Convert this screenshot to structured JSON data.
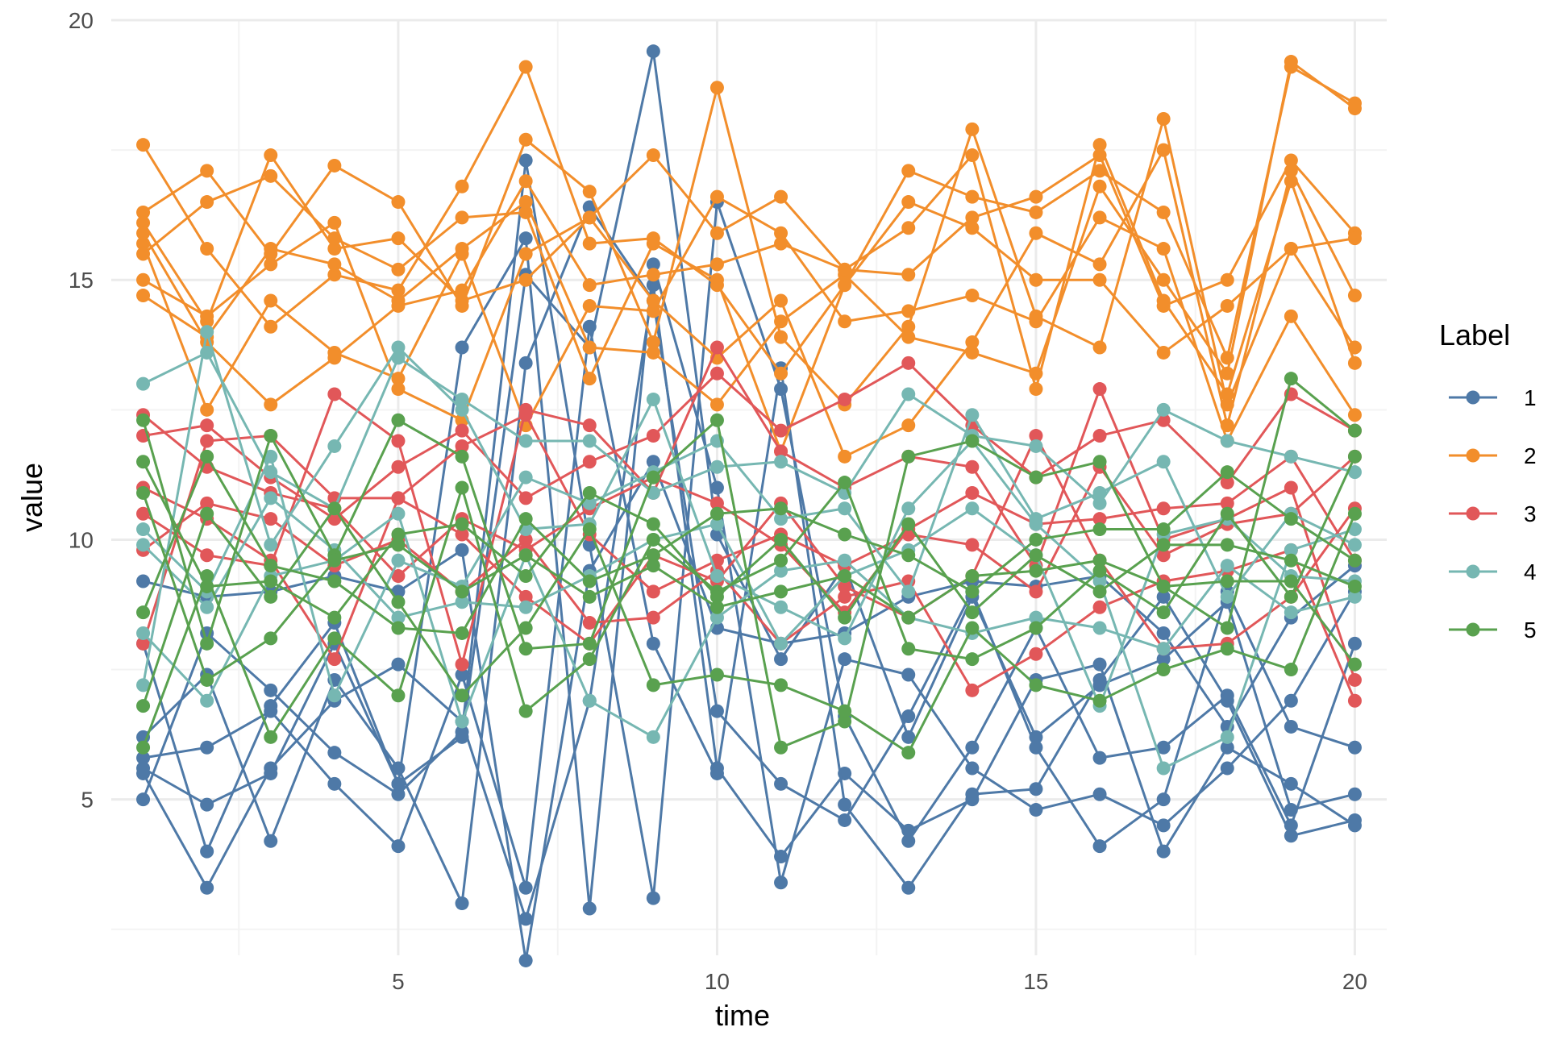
{
  "chart_data": {
    "type": "line",
    "title": "",
    "xlabel": "time",
    "ylabel": "value",
    "xlim": [
      0.5,
      20.5
    ],
    "ylim": [
      2.0,
      20.0
    ],
    "x_ticks": [
      5,
      10,
      15,
      20
    ],
    "x_tick_labels": [
      "5",
      "10",
      "15",
      "20"
    ],
    "y_ticks": [
      5,
      10,
      15,
      20
    ],
    "y_tick_labels": [
      "5",
      "10",
      "15",
      "20"
    ],
    "x_minor": [
      2.5,
      7.5,
      12.5,
      17.5
    ],
    "y_minor": [
      2.5,
      7.5,
      12.5,
      17.5
    ],
    "grid": true,
    "legend": {
      "title": "Label",
      "position": "right"
    },
    "x": [
      1,
      2,
      3,
      4,
      5,
      6,
      7,
      8,
      9,
      10,
      11,
      12,
      13,
      14,
      15,
      16,
      17,
      18,
      19,
      20
    ],
    "groups": [
      {
        "label": "1",
        "color": "#4e79a7",
        "series": [
          [
            5.0,
            8.2,
            7.1,
            5.9,
            5.1,
            6.3,
            17.3,
            9.9,
            3.1,
            16.5,
            12.9,
            6.6,
            4.2,
            6.0,
            8.3,
            5.8,
            6.0,
            7.0,
            4.5,
            8.0
          ],
          [
            5.5,
            3.3,
            5.6,
            6.9,
            7.6,
            6.5,
            2.7,
            6.9,
            14.9,
            5.6,
            3.9,
            5.5,
            4.4,
            5.0,
            7.3,
            7.6,
            4.0,
            6.0,
            5.3,
            4.5
          ],
          [
            6.2,
            7.4,
            4.2,
            7.3,
            5.6,
            3.0,
            13.4,
            16.4,
            14.6,
            6.7,
            5.3,
            4.6,
            6.6,
            9.0,
            6.0,
            4.1,
            5.0,
            9.0,
            6.4,
            6.0
          ],
          [
            5.8,
            6.0,
            6.7,
            5.3,
            4.1,
            7.4,
            3.3,
            14.1,
            8.0,
            5.5,
            13.3,
            4.9,
            3.3,
            5.1,
            5.2,
            7.3,
            8.9,
            6.9,
            4.3,
            4.6
          ],
          [
            5.6,
            4.9,
            5.5,
            8.0,
            5.3,
            13.7,
            15.8,
            2.9,
            15.3,
            11.0,
            3.4,
            7.7,
            7.4,
            5.6,
            4.8,
            5.1,
            4.5,
            5.6,
            6.9,
            9.0
          ],
          [
            8.0,
            4.0,
            6.8,
            8.4,
            5.3,
            6.2,
            15.1,
            13.7,
            19.4,
            10.1,
            7.7,
            9.5,
            6.2,
            8.9,
            6.2,
            7.2,
            7.7,
            8.8,
            4.8,
            5.1
          ],
          [
            9.2,
            8.9,
            9.0,
            9.3,
            9.0,
            9.8,
            1.9,
            9.4,
            11.5,
            8.3,
            8.0,
            8.2,
            8.9,
            9.2,
            9.1,
            9.3,
            8.2,
            6.4,
            8.5,
            9.5
          ]
        ]
      },
      {
        "label": "2",
        "color": "#f28e2b",
        "series": [
          [
            17.6,
            15.6,
            14.1,
            15.1,
            14.8,
            16.8,
            19.1,
            15.7,
            15.8,
            14.9,
            13.2,
            14.9,
            17.1,
            16.6,
            16.3,
            17.1,
            16.3,
            13.5,
            19.1,
            18.4
          ],
          [
            16.3,
            17.1,
            15.5,
            17.2,
            16.5,
            14.5,
            17.7,
            16.7,
            13.8,
            18.7,
            13.9,
            12.6,
            14.1,
            17.9,
            14.3,
            13.7,
            18.1,
            12.6,
            15.6,
            13.7
          ],
          [
            16.1,
            14.2,
            17.4,
            15.6,
            15.8,
            14.6,
            15.0,
            16.2,
            17.4,
            15.9,
            16.6,
            15.2,
            15.1,
            16.2,
            16.6,
            17.4,
            14.5,
            15.0,
            17.3,
            15.9
          ],
          [
            15.7,
            12.5,
            14.6,
            13.6,
            13.1,
            15.5,
            12.2,
            14.5,
            14.4,
            16.6,
            15.9,
            14.2,
            14.4,
            14.7,
            14.2,
            16.2,
            15.6,
            11.9,
            14.3,
            12.4
          ],
          [
            15.5,
            16.5,
            17.0,
            15.8,
            15.2,
            16.2,
            16.3,
            13.1,
            15.7,
            15.0,
            11.7,
            14.9,
            16.5,
            16.0,
            15.0,
            15.0,
            13.6,
            14.5,
            15.6,
            15.8
          ],
          [
            15.0,
            14.3,
            15.3,
            16.1,
            12.9,
            12.3,
            15.5,
            16.2,
            14.6,
            13.5,
            14.6,
            11.6,
            12.2,
            13.8,
            15.9,
            15.3,
            17.5,
            12.2,
            17.1,
            14.7
          ],
          [
            14.7,
            13.9,
            15.6,
            15.3,
            14.6,
            15.6,
            16.5,
            13.7,
            13.6,
            12.6,
            14.2,
            15.1,
            13.9,
            13.6,
            13.2,
            16.8,
            15.0,
            13.2,
            19.2,
            18.3
          ],
          [
            15.9,
            13.8,
            12.6,
            13.5,
            14.5,
            14.8,
            16.9,
            14.9,
            15.1,
            15.3,
            15.7,
            15.2,
            16.0,
            17.4,
            12.9,
            17.6,
            14.6,
            12.8,
            16.9,
            13.4
          ]
        ]
      },
      {
        "label": "3",
        "color": "#e15759",
        "series": [
          [
            12.0,
            12.2,
            11.2,
            10.4,
            11.4,
            12.1,
            10.8,
            11.5,
            12.0,
            13.2,
            12.1,
            12.7,
            13.4,
            12.2,
            11.2,
            12.0,
            12.3,
            11.1,
            12.8,
            12.1
          ],
          [
            10.5,
            9.7,
            9.5,
            12.8,
            11.9,
            7.6,
            12.5,
            12.2,
            10.9,
            13.7,
            11.7,
            11.0,
            11.6,
            11.4,
            9.5,
            12.9,
            10.0,
            10.4,
            11.0,
            7.3
          ],
          [
            9.8,
            10.7,
            10.4,
            9.5,
            10.0,
            9.0,
            10.0,
            8.4,
            8.5,
            9.4,
            8.0,
            8.9,
            9.2,
            7.1,
            7.8,
            8.7,
            9.2,
            9.4,
            9.8,
            6.9
          ],
          [
            8.0,
            11.9,
            12.0,
            10.8,
            10.8,
            11.8,
            12.4,
            10.1,
            9.0,
            9.6,
            10.1,
            9.5,
            10.1,
            9.9,
            9.0,
            11.4,
            9.7,
            10.3,
            10.5,
            11.6
          ],
          [
            11.0,
            10.4,
            9.6,
            7.7,
            10.8,
            10.1,
            8.9,
            8.0,
            9.7,
            9.2,
            10.7,
            9.1,
            8.5,
            9.3,
            12.0,
            9.6,
            7.9,
            8.0,
            8.9,
            10.6
          ],
          [
            12.4,
            11.4,
            10.9,
            10.6,
            9.3,
            10.4,
            9.8,
            10.6,
            11.2,
            10.7,
            9.9,
            8.6,
            10.2,
            10.9,
            10.3,
            10.4,
            10.6,
            10.7,
            11.6,
            9.6
          ]
        ]
      },
      {
        "label": "4",
        "color": "#76b7b2",
        "series": [
          [
            13.0,
            13.6,
            11.3,
            10.6,
            13.5,
            12.7,
            11.9,
            11.9,
            10.9,
            11.4,
            11.5,
            10.9,
            12.8,
            12.0,
            11.8,
            10.7,
            12.5,
            11.9,
            11.6,
            11.3
          ],
          [
            7.2,
            14.0,
            9.9,
            11.8,
            13.7,
            12.5,
            10.2,
            10.3,
            12.7,
            9.3,
            8.7,
            8.1,
            10.6,
            11.9,
            10.3,
            9.2,
            5.6,
            6.2,
            9.8,
            10.2
          ],
          [
            8.2,
            6.9,
            9.3,
            9.6,
            10.5,
            6.5,
            9.7,
            6.9,
            6.2,
            8.5,
            9.4,
            9.6,
            8.5,
            8.2,
            8.5,
            8.3,
            7.9,
            9.5,
            8.6,
            8.9
          ],
          [
            10.2,
            9.0,
            11.6,
            7.0,
            9.6,
            9.1,
            11.2,
            10.7,
            11.3,
            11.9,
            10.4,
            10.6,
            9.0,
            12.4,
            10.4,
            10.9,
            11.5,
            8.9,
            10.5,
            9.9
          ],
          [
            9.9,
            8.7,
            10.8,
            9.8,
            8.5,
            8.8,
            8.7,
            9.3,
            10.0,
            10.3,
            8.0,
            9.3,
            9.8,
            10.6,
            9.7,
            6.8,
            10.1,
            10.4,
            9.3,
            9.2
          ]
        ]
      },
      {
        "label": "5",
        "color": "#59a14f",
        "series": [
          [
            12.3,
            8.0,
            12.0,
            9.7,
            12.3,
            11.6,
            7.9,
            8.0,
            11.2,
            12.3,
            6.0,
            6.5,
            11.6,
            11.9,
            11.2,
            11.5,
            9.1,
            8.3,
            13.1,
            12.1
          ],
          [
            6.0,
            9.3,
            6.2,
            8.1,
            7.0,
            11.0,
            6.7,
            7.7,
            10.0,
            9.0,
            9.6,
            11.1,
            7.9,
            7.7,
            8.3,
            9.4,
            8.6,
            10.5,
            8.9,
            11.6
          ],
          [
            6.8,
            10.5,
            8.9,
            10.6,
            8.8,
            7.0,
            8.3,
            10.2,
            7.2,
            7.4,
            7.2,
            6.7,
            5.9,
            8.3,
            7.2,
            6.9,
            7.5,
            7.9,
            7.5,
            10.5
          ],
          [
            8.6,
            11.6,
            9.5,
            9.2,
            8.3,
            8.2,
            10.4,
            9.2,
            9.7,
            10.5,
            10.6,
            10.1,
            9.7,
            9.0,
            10.0,
            10.2,
            10.2,
            11.3,
            10.4,
            9.6
          ],
          [
            10.9,
            7.3,
            8.1,
            9.6,
            9.9,
            9.0,
            9.7,
            8.9,
            9.5,
            8.7,
            9.0,
            9.3,
            8.5,
            9.3,
            9.4,
            9.6,
            9.1,
            9.2,
            9.2,
            7.6
          ],
          [
            11.5,
            9.1,
            9.2,
            8.5,
            10.1,
            10.3,
            9.3,
            10.9,
            10.3,
            8.9,
            10.0,
            8.5,
            10.3,
            8.6,
            9.7,
            9.0,
            9.9,
            9.9,
            9.6,
            9.1
          ]
        ]
      }
    ]
  }
}
